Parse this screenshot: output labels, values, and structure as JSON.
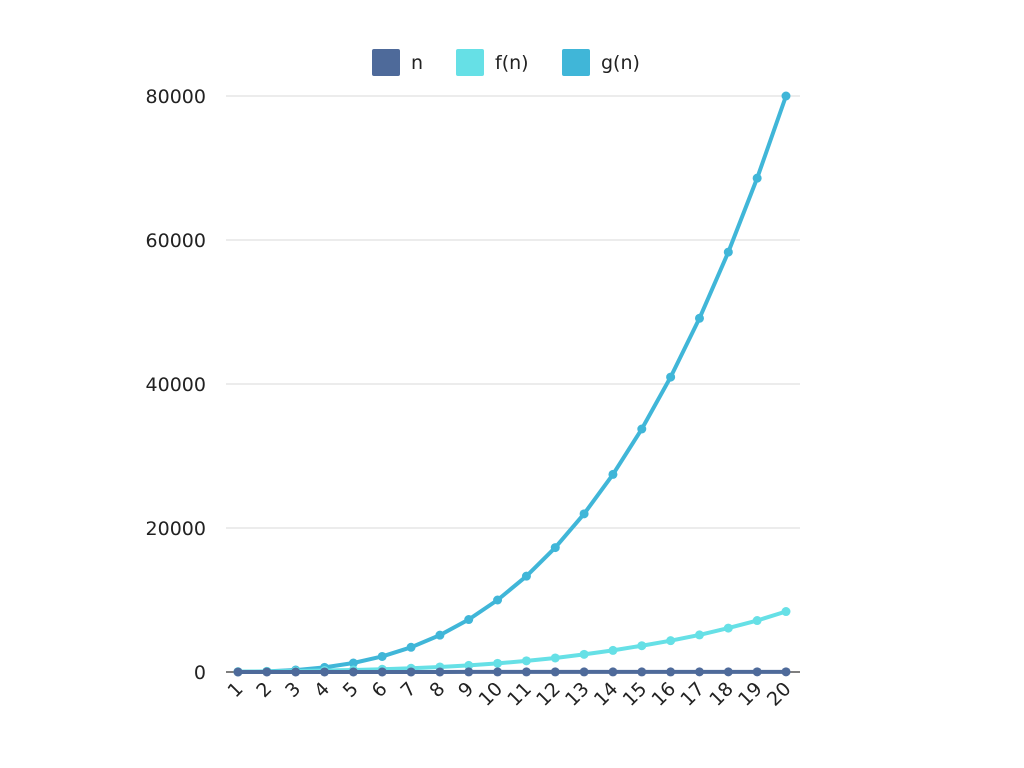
{
  "chart_data": {
    "type": "line",
    "title": "",
    "xlabel": "",
    "ylabel": "",
    "x": [
      1,
      2,
      3,
      4,
      5,
      6,
      7,
      8,
      9,
      10,
      11,
      12,
      13,
      14,
      15,
      16,
      17,
      18,
      19,
      20
    ],
    "x_tick_labels": [
      "1",
      "2",
      "3",
      "4",
      "5",
      "6",
      "7",
      "8",
      "9",
      "10",
      "11",
      "12",
      "13",
      "14",
      "15",
      "16",
      "17",
      "18",
      "19",
      "20"
    ],
    "ylim": [
      0,
      80000
    ],
    "y_ticks": [
      0,
      20000,
      40000,
      60000,
      80000
    ],
    "y_tick_labels": [
      "0",
      "20000",
      "40000",
      "60000",
      "80000"
    ],
    "grid": true,
    "legend_position": "top-center",
    "series": [
      {
        "name": "n",
        "color": "#4e6a9a",
        "values": [
          1,
          2,
          3,
          4,
          5,
          6,
          7,
          8,
          9,
          10,
          11,
          12,
          13,
          14,
          15,
          16,
          17,
          18,
          19,
          20
        ]
      },
      {
        "name": "f(n)",
        "color": "#66e0e6",
        "values": [
          50,
          90,
          140,
          200,
          280,
          380,
          520,
          700,
          920,
          1200,
          1550,
          1950,
          2450,
          3000,
          3650,
          4350,
          5150,
          6100,
          7150,
          8400
        ]
      },
      {
        "name": "g(n)",
        "color": "#40b6d8",
        "values": [
          10,
          80,
          270,
          640,
          1250,
          2160,
          3430,
          5120,
          7290,
          10000,
          13310,
          17280,
          21970,
          27440,
          33750,
          40960,
          49130,
          58320,
          68590,
          80000
        ]
      }
    ]
  }
}
